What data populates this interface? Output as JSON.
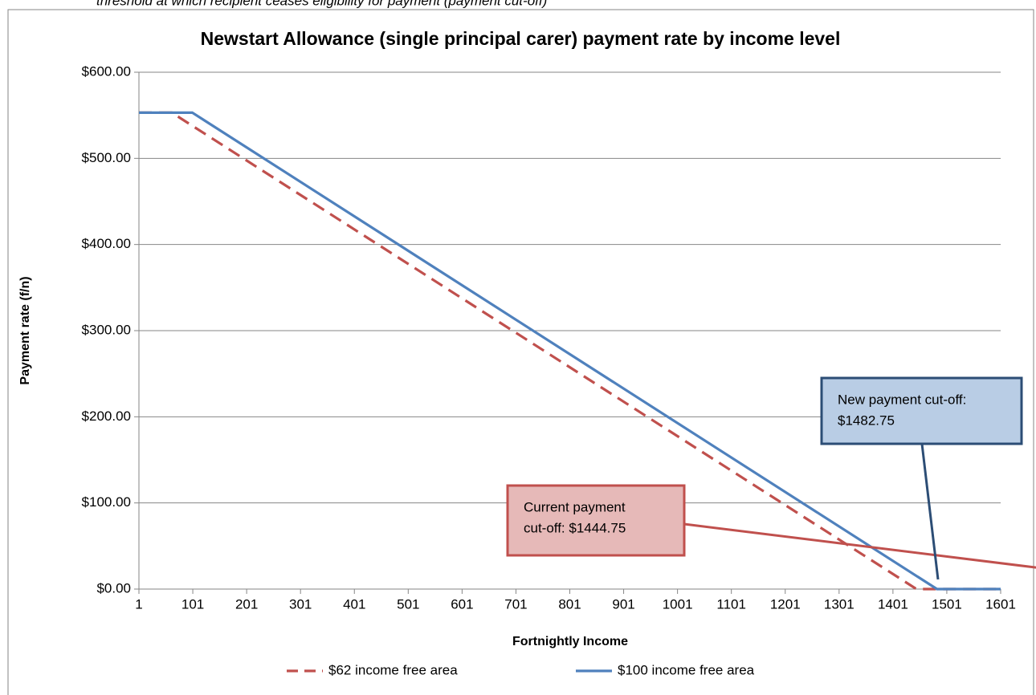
{
  "caption": "threshold at which recipient ceases eligibility for payment (payment cut-off)",
  "chart_data": {
    "type": "line",
    "title": "Newstart Allowance (single principal carer) payment rate by income level",
    "x_label": "Fortnightly Income",
    "y_label": "Payment rate (f/n)",
    "series": [
      {
        "name": "$62 income free area",
        "color": "#c0504d",
        "dashed": true,
        "x": [
          1,
          62,
          1444.75,
          1601
        ],
        "values": [
          553.1,
          553.1,
          0,
          0
        ]
      },
      {
        "name": "$100 income free area",
        "color": "#4f81bd",
        "dashed": false,
        "x": [
          1,
          100,
          1482.75,
          1601
        ],
        "values": [
          553.1,
          553.1,
          0,
          0
        ]
      }
    ],
    "xlim": [
      1,
      1601
    ],
    "xticks": [
      1,
      101,
      201,
      301,
      401,
      501,
      601,
      701,
      801,
      901,
      1001,
      1101,
      1201,
      1301,
      1401,
      1501,
      1601
    ],
    "ylim": [
      0,
      600
    ],
    "yticks": [
      {
        "value": 0,
        "label": "$0.00"
      },
      {
        "value": 100,
        "label": "$100.00"
      },
      {
        "value": 200,
        "label": "$200.00"
      },
      {
        "value": 300,
        "label": "$300.00"
      },
      {
        "value": 400,
        "label": "$400.00"
      },
      {
        "value": 500,
        "label": "$500.00"
      },
      {
        "value": 600,
        "label": "$600.00"
      }
    ],
    "grid": true,
    "legend": "bottom",
    "annotations": [
      {
        "lines": [
          "Current payment",
          "cut-off: $1444.75"
        ],
        "fill": "#e6b9b8",
        "stroke": "#c0504d"
      },
      {
        "lines": [
          "New payment cut-off:",
          "$1482.75"
        ],
        "fill": "#b9cde5",
        "stroke": "#2c4d75"
      }
    ]
  }
}
